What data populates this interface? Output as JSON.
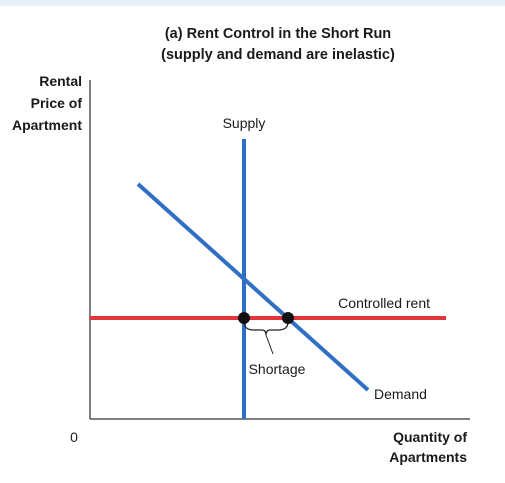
{
  "title": {
    "line1": "(a) Rent Control in the Short Run",
    "line2": "(supply and demand are inelastic)"
  },
  "y_axis": {
    "label_lines": [
      "Rental",
      "Price of",
      "Apartment"
    ]
  },
  "x_axis": {
    "label_lines": [
      "Quantity of",
      "Apartments"
    ],
    "origin_label": "0"
  },
  "curves": {
    "supply": {
      "label": "Supply",
      "color": "#2f6fc4"
    },
    "demand": {
      "label": "Demand",
      "color": "#2f6fc4"
    },
    "controlled_rent": {
      "label": "Controlled rent",
      "color": "#e0353b"
    }
  },
  "annotations": {
    "shortage": "Shortage"
  },
  "colors": {
    "axis": "#555555",
    "point": "#111111",
    "brace": "#222222",
    "header_band": "#e8f0f6"
  }
}
